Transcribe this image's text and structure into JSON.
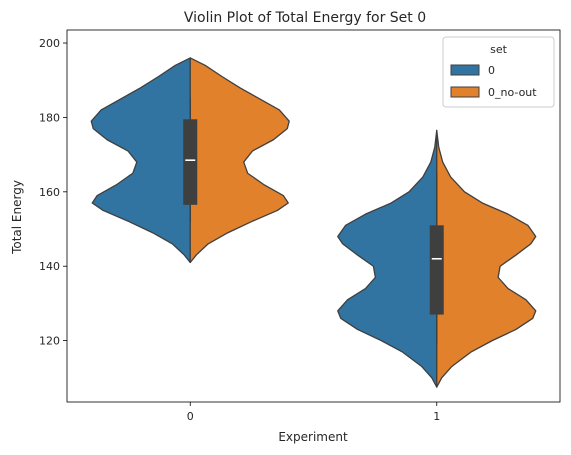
{
  "chart_data": {
    "type": "violin",
    "title": "Violin Plot of Total Energy for Set 0",
    "xlabel": "Experiment",
    "ylabel": "Total Energy",
    "categories": [
      "0",
      "1"
    ],
    "ylim": [
      103.5,
      203.5
    ],
    "yticks": [
      120,
      140,
      160,
      180,
      200
    ],
    "grid": false,
    "split": true,
    "legend": {
      "title": "set",
      "placement": "top-right",
      "entries": [
        {
          "label": "0",
          "color": "#3274a1"
        },
        {
          "label": "0_no-out",
          "color": "#e1812c"
        }
      ]
    },
    "violins": [
      {
        "category": "0",
        "ymin": 141,
        "ymax": 196,
        "left": {
          "series": "0",
          "color": "#3274a1",
          "density": [
            [
              141,
              0
            ],
            [
              143,
              0.06
            ],
            [
              146,
              0.18
            ],
            [
              149,
              0.38
            ],
            [
              152,
              0.62
            ],
            [
              155,
              0.88
            ],
            [
              157,
              0.99
            ],
            [
              159,
              0.94
            ],
            [
              162,
              0.74
            ],
            [
              165,
              0.58
            ],
            [
              168,
              0.54
            ],
            [
              171,
              0.63
            ],
            [
              174,
              0.84
            ],
            [
              177,
              0.98
            ],
            [
              179,
              1.0
            ],
            [
              182,
              0.9
            ],
            [
              185,
              0.7
            ],
            [
              188,
              0.5
            ],
            [
              191,
              0.32
            ],
            [
              194,
              0.15
            ],
            [
              196,
              0
            ]
          ]
        },
        "right": {
          "series": "0_no-out",
          "color": "#e1812c",
          "density": [
            [
              141,
              0
            ],
            [
              143,
              0.06
            ],
            [
              146,
              0.18
            ],
            [
              149,
              0.38
            ],
            [
              152,
              0.62
            ],
            [
              155,
              0.88
            ],
            [
              157,
              0.99
            ],
            [
              159,
              0.94
            ],
            [
              162,
              0.74
            ],
            [
              165,
              0.58
            ],
            [
              168,
              0.54
            ],
            [
              171,
              0.63
            ],
            [
              174,
              0.84
            ],
            [
              177,
              0.98
            ],
            [
              179,
              1.0
            ],
            [
              182,
              0.9
            ],
            [
              185,
              0.7
            ],
            [
              188,
              0.5
            ],
            [
              191,
              0.32
            ],
            [
              194,
              0.15
            ],
            [
              196,
              0
            ]
          ]
        },
        "box": {
          "q1": 156.5,
          "median": 168.5,
          "q3": 179.5,
          "whisker_low": 152,
          "whisker_high": 185
        }
      },
      {
        "category": "1",
        "ymin": 107.5,
        "ymax": 176.5,
        "left": {
          "series": "0",
          "color": "#3274a1",
          "density": [
            [
              107.5,
              0
            ],
            [
              110,
              0.05
            ],
            [
              113,
              0.15
            ],
            [
              117,
              0.35
            ],
            [
              120,
              0.56
            ],
            [
              123,
              0.8
            ],
            [
              126,
              0.97
            ],
            [
              128,
              1.0
            ],
            [
              131,
              0.9
            ],
            [
              134,
              0.72
            ],
            [
              137,
              0.62
            ],
            [
              140,
              0.64
            ],
            [
              143,
              0.8
            ],
            [
              146,
              0.95
            ],
            [
              148,
              1.0
            ],
            [
              151,
              0.92
            ],
            [
              154,
              0.72
            ],
            [
              157,
              0.46
            ],
            [
              160,
              0.28
            ],
            [
              164,
              0.14
            ],
            [
              168,
              0.06
            ],
            [
              172,
              0.02
            ],
            [
              176.5,
              0
            ]
          ]
        },
        "right": {
          "series": "0_no-out",
          "color": "#e1812c",
          "density": [
            [
              107.5,
              0
            ],
            [
              110,
              0.05
            ],
            [
              113,
              0.15
            ],
            [
              117,
              0.35
            ],
            [
              120,
              0.56
            ],
            [
              123,
              0.8
            ],
            [
              126,
              0.97
            ],
            [
              128,
              1.0
            ],
            [
              131,
              0.9
            ],
            [
              134,
              0.72
            ],
            [
              137,
              0.62
            ],
            [
              140,
              0.64
            ],
            [
              143,
              0.8
            ],
            [
              146,
              0.95
            ],
            [
              148,
              1.0
            ],
            [
              151,
              0.92
            ],
            [
              154,
              0.72
            ],
            [
              157,
              0.46
            ],
            [
              160,
              0.28
            ],
            [
              164,
              0.14
            ],
            [
              168,
              0.06
            ],
            [
              172,
              0.02
            ],
            [
              176.5,
              0
            ]
          ]
        },
        "box": {
          "q1": 127,
          "median": 142,
          "q3": 151,
          "whisker_low": 119,
          "whisker_high": 165
        }
      }
    ]
  }
}
